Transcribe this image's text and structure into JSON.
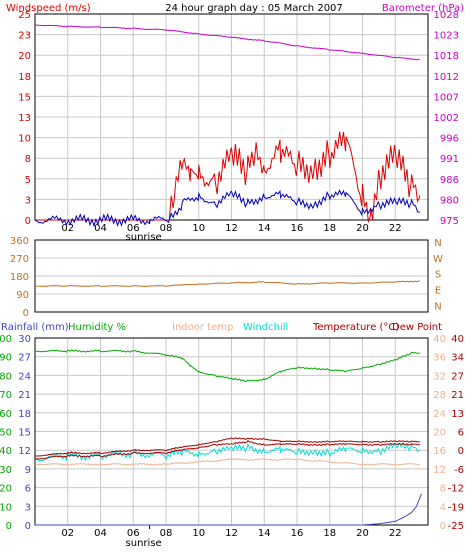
{
  "colors": {
    "windspeed": "#dd0000",
    "windavg": "#0000bb",
    "barometer": "#cc00cc",
    "direction": "#c07020",
    "rainfall": "#4444cc",
    "humidity": "#00aa00",
    "indoor_temp": "#f0b090",
    "windchill": "#00e0e0",
    "temperature": "#aa0000",
    "dewpoint": "#aa0000",
    "grid": "#c8c8c8",
    "frame": "#000000",
    "baro_axis": "#cc00cc",
    "dir_axis": "#c07020",
    "rain_axis": "#4444cc",
    "humid_axis": "#00aa00",
    "indoor_axis": "#f0b090",
    "temp_axis": "#aa0000"
  },
  "header": {
    "windspeed_label": "Windspeed (m/s)",
    "title": "24 hour graph day : 05 March 2007",
    "barometer_label": "Barometer (hPa)"
  },
  "middle": {
    "dir_letters": [
      "N",
      "W",
      "S",
      "E",
      "N"
    ]
  },
  "bottom_header": {
    "rainfall_label": "Rainfall (mm)",
    "humidity_label": "Humidity %",
    "indoor_label": "Indoor temp",
    "windchill_label": "Windchill",
    "temperature_label": "Temperature (°C)",
    "dewpoint_label": "Dew Point"
  },
  "sunrise_label": "sunrise",
  "chart_data": [
    {
      "type": "line",
      "title": "24 hour graph day : 05 March 2007",
      "xlabel": "",
      "x_ticks": [
        "02",
        "04",
        "06",
        "08",
        "10",
        "12",
        "14",
        "16",
        "18",
        "20",
        "22"
      ],
      "y_left": {
        "label": "Windspeed (m/s)",
        "ticks": [
          0,
          3,
          5,
          8,
          10,
          13,
          15,
          18,
          20,
          23,
          25
        ],
        "ylim": [
          0,
          25
        ]
      },
      "y_right": {
        "label": "Barometer (hPa)",
        "ticks": [
          975,
          980,
          986,
          991,
          996,
          1002,
          1007,
          1012,
          1018,
          1023,
          1028
        ],
        "ylim": [
          975,
          1028
        ]
      },
      "series": [
        {
          "name": "Windspeed (m/s)",
          "axis": "left",
          "x": [
            0,
            8.2,
            8.5,
            9,
            9.5,
            10,
            11,
            12,
            13,
            13.5,
            14,
            15,
            16,
            17,
            18,
            19,
            20,
            20.5,
            21,
            22,
            23,
            23.5
          ],
          "y": [
            0,
            0,
            3,
            6,
            5,
            6,
            5,
            7,
            6,
            9,
            7,
            8,
            6,
            7,
            8,
            9,
            3,
            1,
            6,
            7,
            4,
            3
          ]
        },
        {
          "name": "Wind average",
          "axis": "left",
          "x": [
            0,
            8.2,
            9,
            10,
            11,
            12,
            13,
            14,
            15,
            16,
            17,
            18,
            19,
            20,
            21,
            22,
            23,
            23.5
          ],
          "y": [
            0,
            0,
            2,
            3,
            2,
            3,
            2,
            3,
            3,
            2,
            2,
            3,
            3,
            1,
            2,
            2,
            2,
            1
          ]
        },
        {
          "name": "Barometer (hPa)",
          "axis": "right",
          "x": [
            0,
            2,
            4,
            6,
            8,
            10,
            12,
            14,
            16,
            18,
            20,
            22,
            23.5
          ],
          "y": [
            1025.2,
            1024.8,
            1024.6,
            1024.3,
            1023.9,
            1022.9,
            1022.0,
            1021.1,
            1019.8,
            1018.8,
            1017.9,
            1016.8,
            1016.3
          ]
        }
      ]
    },
    {
      "type": "line",
      "title": "",
      "y_left": {
        "label": "",
        "ticks": [
          0,
          90,
          180,
          270,
          360
        ],
        "ylim": [
          0,
          360
        ]
      },
      "y_right": {
        "label": "",
        "ticks": [
          "N",
          "E",
          "S",
          "W",
          "N"
        ]
      },
      "series": [
        {
          "name": "Wind direction",
          "x": [
            0,
            2,
            4,
            6,
            8,
            9,
            10,
            12,
            14,
            16,
            18,
            20,
            22,
            23.5
          ],
          "y": [
            130,
            130,
            130,
            130,
            130,
            135,
            140,
            145,
            150,
            140,
            145,
            145,
            150,
            155
          ]
        }
      ]
    },
    {
      "type": "line",
      "title": "",
      "y_left_rain": {
        "label": "Rainfall (mm)",
        "ticks": [
          0,
          3,
          6,
          9,
          12,
          15,
          18,
          21,
          24,
          27,
          30
        ],
        "ylim": [
          0,
          30
        ]
      },
      "y_left_humidity": {
        "label": "Humidity %",
        "ticks": [
          0,
          10,
          20,
          30,
          40,
          50,
          60,
          70,
          80,
          90,
          100
        ],
        "ylim": [
          0,
          100
        ]
      },
      "y_right_indoor": {
        "label": "Indoor temp",
        "ticks": [
          0,
          4,
          8,
          12,
          16,
          20,
          24,
          28,
          32,
          36,
          40
        ],
        "ylim": [
          0,
          40
        ]
      },
      "y_right_temp": {
        "label": "Temperature (°C)",
        "ticks": [
          -25,
          -19,
          -12,
          -6,
          0,
          6,
          13,
          21,
          27,
          34,
          40
        ],
        "ylim": [
          -25,
          40
        ]
      },
      "series": [
        {
          "name": "Rainfall (mm)",
          "axis": "rain",
          "x": [
            0,
            20,
            21,
            22,
            22.5,
            23,
            23.3,
            23.6
          ],
          "y": [
            0,
            0,
            0.2,
            0.6,
            1.2,
            2,
            3,
            5
          ]
        },
        {
          "name": "Humidity %",
          "axis": "humidity",
          "x": [
            0,
            2,
            4,
            6,
            8,
            9,
            9.5,
            10,
            11,
            12,
            13,
            14,
            15,
            16,
            17,
            18,
            19,
            20,
            21,
            22,
            23,
            23.5
          ],
          "y": [
            93,
            93,
            93,
            93,
            91,
            89,
            85,
            82,
            80,
            78,
            77,
            78,
            82,
            84,
            84,
            83,
            82,
            84,
            86,
            88,
            92,
            92
          ]
        },
        {
          "name": "Indoor temp",
          "axis": "indoor",
          "x": [
            0,
            4,
            8,
            12,
            16,
            20,
            23.5
          ],
          "y": [
            13,
            13,
            13,
            14,
            14,
            13,
            13
          ]
        },
        {
          "name": "Windchill",
          "axis": "temp",
          "x": [
            0,
            2,
            4,
            6,
            8,
            9,
            10,
            11,
            12,
            13,
            14,
            15,
            16,
            17,
            18,
            19,
            20,
            21,
            22,
            23,
            23.5
          ],
          "y": [
            -2,
            -1,
            -1,
            0,
            -1,
            0,
            0,
            1,
            1,
            2,
            1,
            1,
            0,
            1,
            0,
            1,
            1,
            1,
            2,
            2,
            1
          ]
        },
        {
          "name": "Temperature (°C)",
          "axis": "temp",
          "x": [
            0,
            2,
            4,
            6,
            8,
            9,
            10,
            11,
            12,
            13,
            14,
            15,
            16,
            17,
            18,
            19,
            20,
            21,
            22,
            23,
            23.5
          ],
          "y": [
            -1,
            0,
            0,
            1,
            1,
            2,
            3,
            4,
            5,
            5,
            5,
            4,
            4,
            4,
            4,
            4,
            4,
            4,
            4,
            4,
            4
          ]
        },
        {
          "name": "Dew Point",
          "axis": "temp",
          "x": [
            0,
            2,
            4,
            6,
            8,
            9,
            10,
            11,
            12,
            13,
            14,
            15,
            16,
            17,
            18,
            19,
            20,
            21,
            22,
            23,
            23.5
          ],
          "y": [
            -2,
            -1,
            -1,
            0,
            0,
            1,
            2,
            3,
            3,
            4,
            3,
            3,
            3,
            3,
            3,
            3,
            3,
            3,
            3,
            3,
            3
          ]
        }
      ]
    }
  ]
}
